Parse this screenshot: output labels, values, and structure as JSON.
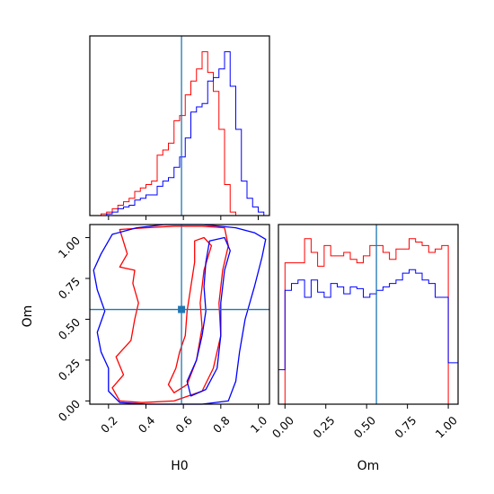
{
  "colors": {
    "series_a": "#ff0000",
    "series_b": "#0000ff",
    "truth": "#1f77b4",
    "axes": "#000000"
  },
  "chart_data": [
    {
      "panel": "hist-H0",
      "type": "histogram",
      "x_range": [
        0.1,
        1.06
      ],
      "bin_edges": [
        0.1,
        0.13,
        0.16,
        0.19,
        0.22,
        0.25,
        0.28,
        0.31,
        0.34,
        0.37,
        0.4,
        0.43,
        0.46,
        0.49,
        0.52,
        0.55,
        0.58,
        0.61,
        0.64,
        0.67,
        0.7,
        0.73,
        0.76,
        0.79,
        0.82,
        0.85,
        0.88,
        0.91,
        0.94,
        0.97,
        1.0,
        1.03,
        1.06
      ],
      "truth_x": 0.59,
      "series": [
        {
          "color": "red",
          "values": [
            0,
            0,
            0.01,
            0.02,
            0.04,
            0.06,
            0.08,
            0.1,
            0.14,
            0.16,
            0.18,
            0.2,
            0.35,
            0.38,
            0.42,
            0.55,
            0.58,
            0.7,
            0.78,
            0.85,
            0.95,
            0.83,
            0.72,
            0.5,
            0.18,
            0.02,
            0,
            0,
            0,
            0,
            0,
            0
          ]
        },
        {
          "color": "blue",
          "values": [
            0,
            0,
            0,
            0.01,
            0.02,
            0.04,
            0.05,
            0.06,
            0.09,
            0.1,
            0.12,
            0.12,
            0.17,
            0.2,
            0.22,
            0.28,
            0.34,
            0.45,
            0.6,
            0.63,
            0.65,
            0.78,
            0.8,
            0.85,
            0.95,
            0.75,
            0.5,
            0.2,
            0.1,
            0.05,
            0.02,
            0
          ]
        }
      ]
    },
    {
      "panel": "contour-Om-vs-H0",
      "type": "contour",
      "xlabel": "H0",
      "ylabel": "Om",
      "x_range": [
        0.1,
        1.06
      ],
      "y_range": [
        -0.02,
        1.08
      ],
      "x_ticks": [
        "0.2",
        "0.4",
        "0.6",
        "0.8",
        "1.0"
      ],
      "x_tick_values": [
        0.2,
        0.4,
        0.6,
        0.8,
        1.0
      ],
      "y_ticks": [
        "0.00",
        "0.25",
        "0.50",
        "0.75",
        "1.00"
      ],
      "y_tick_values": [
        0,
        0.25,
        0.5,
        0.75,
        1.0
      ],
      "truth": [
        0.59,
        0.56
      ],
      "series": [
        {
          "color": "red",
          "contours": [
            [
              [
                0.26,
                1.05
              ],
              [
                0.4,
                1.06
              ],
              [
                0.55,
                1.07
              ],
              [
                0.7,
                1.07
              ],
              [
                0.82,
                1.06
              ],
              [
                0.84,
                0.95
              ],
              [
                0.81,
                0.8
              ],
              [
                0.79,
                0.6
              ],
              [
                0.8,
                0.4
              ],
              [
                0.76,
                0.2
              ],
              [
                0.7,
                0.06
              ],
              [
                0.55,
                0.0
              ],
              [
                0.38,
                -0.01
              ],
              [
                0.26,
                0.0
              ],
              [
                0.22,
                0.08
              ],
              [
                0.28,
                0.16
              ],
              [
                0.24,
                0.27
              ],
              [
                0.32,
                0.37
              ],
              [
                0.34,
                0.5
              ],
              [
                0.36,
                0.6
              ],
              [
                0.33,
                0.72
              ],
              [
                0.34,
                0.8
              ],
              [
                0.26,
                0.82
              ],
              [
                0.3,
                0.9
              ],
              [
                0.26,
                1.05
              ]
            ],
            [
              [
                0.66,
                0.98
              ],
              [
                0.71,
                1.0
              ],
              [
                0.75,
                0.95
              ],
              [
                0.71,
                0.8
              ],
              [
                0.69,
                0.6
              ],
              [
                0.7,
                0.45
              ],
              [
                0.67,
                0.25
              ],
              [
                0.62,
                0.1
              ],
              [
                0.55,
                0.05
              ],
              [
                0.52,
                0.1
              ],
              [
                0.56,
                0.2
              ],
              [
                0.58,
                0.3
              ],
              [
                0.61,
                0.4
              ],
              [
                0.62,
                0.55
              ],
              [
                0.64,
                0.7
              ],
              [
                0.66,
                0.85
              ],
              [
                0.66,
                0.98
              ]
            ]
          ]
        },
        {
          "color": "blue",
          "contours": [
            [
              [
                0.22,
                1.02
              ],
              [
                0.35,
                1.06
              ],
              [
                0.5,
                1.08
              ],
              [
                0.7,
                1.08
              ],
              [
                0.88,
                1.06
              ],
              [
                0.98,
                1.03
              ],
              [
                1.04,
                0.99
              ],
              [
                1.02,
                0.88
              ],
              [
                0.98,
                0.7
              ],
              [
                0.93,
                0.5
              ],
              [
                0.9,
                0.3
              ],
              [
                0.88,
                0.12
              ],
              [
                0.84,
                0.0
              ],
              [
                0.7,
                -0.02
              ],
              [
                0.55,
                -0.02
              ],
              [
                0.4,
                -0.02
              ],
              [
                0.26,
                -0.01
              ],
              [
                0.2,
                0.06
              ],
              [
                0.2,
                0.2
              ],
              [
                0.16,
                0.3
              ],
              [
                0.14,
                0.42
              ],
              [
                0.18,
                0.55
              ],
              [
                0.14,
                0.68
              ],
              [
                0.12,
                0.8
              ],
              [
                0.16,
                0.9
              ],
              [
                0.22,
                1.02
              ]
            ],
            [
              [
                0.74,
                0.98
              ],
              [
                0.82,
                1.0
              ],
              [
                0.85,
                0.92
              ],
              [
                0.82,
                0.8
              ],
              [
                0.8,
                0.6
              ],
              [
                0.8,
                0.4
              ],
              [
                0.78,
                0.2
              ],
              [
                0.72,
                0.07
              ],
              [
                0.64,
                0.03
              ],
              [
                0.62,
                0.12
              ],
              [
                0.67,
                0.25
              ],
              [
                0.7,
                0.4
              ],
              [
                0.72,
                0.55
              ],
              [
                0.71,
                0.7
              ],
              [
                0.72,
                0.85
              ],
              [
                0.74,
                0.98
              ]
            ]
          ]
        }
      ]
    },
    {
      "panel": "hist-Om",
      "type": "histogram",
      "xlabel": "Om",
      "x_range": [
        -0.04,
        1.06
      ],
      "x_ticks": [
        "0.00",
        "0.25",
        "0.50",
        "0.75",
        "1.00"
      ],
      "x_tick_values": [
        0,
        0.25,
        0.5,
        0.75,
        1.0
      ],
      "bin_edges": [
        -0.04,
        0.0,
        0.04,
        0.08,
        0.12,
        0.16,
        0.2,
        0.24,
        0.28,
        0.32,
        0.36,
        0.4,
        0.44,
        0.48,
        0.52,
        0.56,
        0.6,
        0.64,
        0.68,
        0.72,
        0.76,
        0.8,
        0.84,
        0.88,
        0.92,
        0.96,
        1.0,
        1.04,
        1.06
      ],
      "truth_x": 0.56,
      "series": [
        {
          "color": "red",
          "values": [
            0,
            0.82,
            0.82,
            0.82,
            0.96,
            0.88,
            0.8,
            0.92,
            0.86,
            0.86,
            0.88,
            0.84,
            0.82,
            0.86,
            0.92,
            0.92,
            0.88,
            0.84,
            0.9,
            0.9,
            0.96,
            0.94,
            0.92,
            0.88,
            0.9,
            0.92,
            0,
            0
          ]
        },
        {
          "color": "blue",
          "values": [
            0.2,
            0.66,
            0.7,
            0.72,
            0.62,
            0.72,
            0.65,
            0.62,
            0.7,
            0.68,
            0.64,
            0.68,
            0.67,
            0.62,
            0.64,
            0.66,
            0.68,
            0.7,
            0.72,
            0.76,
            0.78,
            0.76,
            0.72,
            0.7,
            0.62,
            0.62,
            0.24,
            0.24
          ]
        }
      ]
    }
  ]
}
